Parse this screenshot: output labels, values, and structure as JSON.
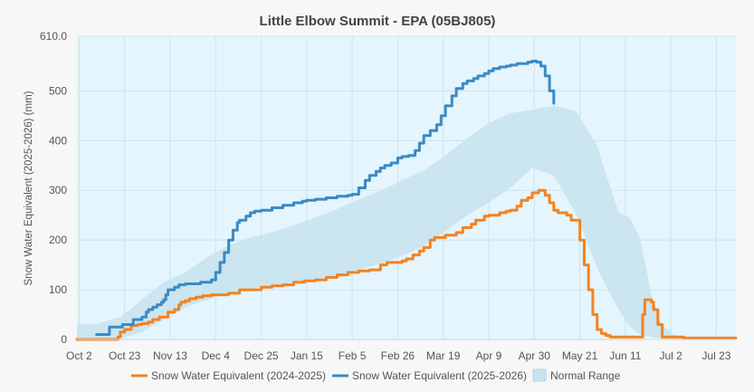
{
  "chart_data": {
    "type": "line",
    "title": "Little Elbow Summit - EPA (05BJ805)",
    "ylabel": "Snow Water Equivalent (2025-2026) (mm)",
    "xlabel": "",
    "ylim": [
      0,
      610
    ],
    "y_ticks": [
      0,
      100,
      200,
      300,
      400,
      500
    ],
    "y_max_label": "610.0",
    "x_ticks": [
      {
        "label": "Oct 2",
        "day": 1
      },
      {
        "label": "Oct 23",
        "day": 22
      },
      {
        "label": "Nov 13",
        "day": 43
      },
      {
        "label": "Dec 4",
        "day": 64
      },
      {
        "label": "Dec 25",
        "day": 85
      },
      {
        "label": "Jan 15",
        "day": 106
      },
      {
        "label": "Feb 5",
        "day": 127
      },
      {
        "label": "Feb 26",
        "day": 148
      },
      {
        "label": "Mar 19",
        "day": 169
      },
      {
        "label": "Apr 9",
        "day": 190
      },
      {
        "label": "Apr 30",
        "day": 211
      },
      {
        "label": "May 21",
        "day": 232
      },
      {
        "label": "Jun 11",
        "day": 253
      },
      {
        "label": "Jul 2",
        "day": 274
      },
      {
        "label": "Jul 23",
        "day": 295
      }
    ],
    "x_range": [
      0,
      304
    ],
    "grid": true,
    "legend_position": "bottom",
    "colors": {
      "plot_background": "#e4f5fd",
      "grid": "#cfe3ec",
      "series_2024": "#f58220",
      "series_2025": "#3b8ac4",
      "normal_fill": "#c8e3f0",
      "normal_edge": "#b5d6e6"
    },
    "normal_range": {
      "name": "Normal Range",
      "x": [
        0,
        10,
        20,
        30,
        40,
        50,
        60,
        70,
        80,
        90,
        100,
        110,
        120,
        130,
        140,
        150,
        160,
        170,
        180,
        190,
        200,
        210,
        220,
        230,
        240,
        245,
        250,
        255,
        260,
        265,
        270,
        275,
        280,
        290,
        304
      ],
      "low": [
        0,
        0,
        2,
        15,
        40,
        65,
        80,
        92,
        102,
        108,
        115,
        122,
        130,
        140,
        153,
        168,
        188,
        218,
        250,
        275,
        305,
        345,
        330,
        255,
        145,
        100,
        60,
        25,
        10,
        5,
        2,
        0,
        0,
        0,
        0
      ],
      "high": [
        30,
        32,
        45,
        80,
        115,
        135,
        165,
        190,
        205,
        215,
        230,
        245,
        262,
        282,
        298,
        320,
        340,
        370,
        405,
        435,
        455,
        462,
        470,
        460,
        390,
        320,
        255,
        245,
        200,
        90,
        30,
        10,
        5,
        3,
        3
      ]
    },
    "series": [
      {
        "name": "Snow Water Equivalent (2024-2025)",
        "x": [
          0,
          14,
          19,
          20,
          22,
          25,
          28,
          30,
          33,
          35,
          38,
          42,
          45,
          47,
          48,
          50,
          52,
          55,
          58,
          62,
          65,
          70,
          75,
          80,
          85,
          90,
          95,
          100,
          105,
          110,
          115,
          120,
          125,
          128,
          130,
          135,
          140,
          143,
          145,
          150,
          152,
          155,
          158,
          160,
          163,
          165,
          170,
          175,
          178,
          182,
          184,
          188,
          190,
          195,
          198,
          200,
          203,
          205,
          208,
          210,
          213,
          216,
          218,
          220,
          222,
          224,
          226,
          228,
          232,
          234,
          236,
          238,
          240,
          242,
          244,
          246,
          248,
          250,
          260,
          261,
          262,
          263,
          265,
          266,
          268,
          270,
          280,
          304
        ],
        "values": [
          0,
          0,
          5,
          15,
          20,
          28,
          30,
          32,
          35,
          40,
          45,
          55,
          60,
          70,
          75,
          78,
          82,
          85,
          88,
          90,
          90,
          93,
          100,
          100,
          105,
          108,
          110,
          115,
          118,
          120,
          125,
          130,
          135,
          135,
          138,
          140,
          150,
          155,
          155,
          158,
          162,
          170,
          178,
          185,
          200,
          205,
          210,
          215,
          225,
          232,
          240,
          248,
          250,
          255,
          258,
          260,
          268,
          280,
          285,
          295,
          300,
          290,
          275,
          260,
          255,
          255,
          250,
          240,
          200,
          150,
          100,
          50,
          20,
          12,
          8,
          5,
          5,
          5,
          5,
          50,
          80,
          80,
          75,
          60,
          30,
          5,
          3,
          3
        ]
      },
      {
        "name": "Snow Water Equivalent (2025-2026)",
        "x": [
          9,
          14,
          15,
          20,
          21,
          25,
          26,
          30,
          32,
          33,
          35,
          37,
          39,
          40,
          41,
          42,
          45,
          47,
          50,
          53,
          57,
          62,
          64,
          66,
          68,
          70,
          72,
          74,
          75,
          78,
          80,
          82,
          85,
          90,
          95,
          100,
          104,
          106,
          110,
          115,
          120,
          125,
          127,
          130,
          133,
          135,
          138,
          140,
          142,
          145,
          148,
          150,
          153,
          156,
          158,
          160,
          163,
          166,
          168,
          170,
          173,
          175,
          178,
          180,
          183,
          185,
          188,
          190,
          192,
          195,
          198,
          200,
          203,
          205,
          208,
          210,
          212,
          214,
          216,
          218,
          220
        ],
        "values": [
          10,
          10,
          25,
          25,
          30,
          30,
          40,
          45,
          55,
          60,
          65,
          70,
          75,
          80,
          90,
          100,
          105,
          110,
          112,
          112,
          115,
          120,
          135,
          155,
          175,
          200,
          220,
          235,
          240,
          248,
          255,
          258,
          260,
          265,
          270,
          275,
          278,
          280,
          282,
          285,
          288,
          290,
          292,
          305,
          320,
          330,
          338,
          345,
          350,
          355,
          365,
          368,
          370,
          380,
          395,
          410,
          420,
          432,
          450,
          470,
          490,
          505,
          515,
          520,
          525,
          530,
          535,
          540,
          545,
          548,
          550,
          552,
          555,
          555,
          558,
          560,
          558,
          550,
          530,
          500,
          475
        ]
      }
    ],
    "legend": [
      {
        "label": "Snow Water Equivalent (2024-2025)"
      },
      {
        "label": "Snow Water Equivalent (2025-2026)"
      },
      {
        "label": "Normal Range"
      }
    ]
  }
}
